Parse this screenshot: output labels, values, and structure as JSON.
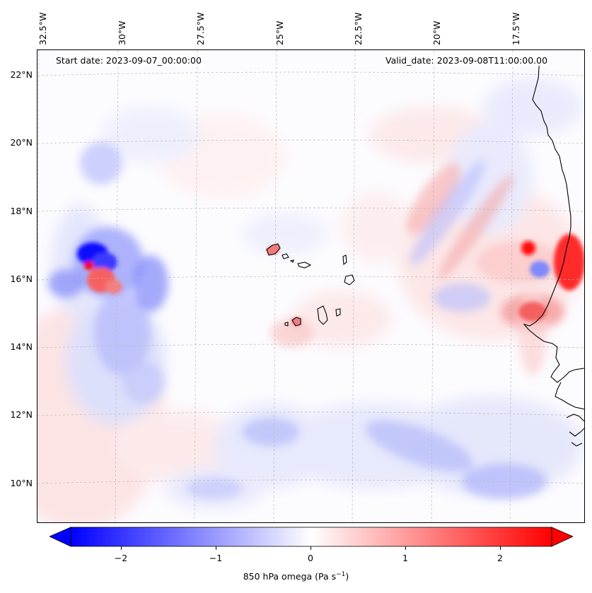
{
  "map": {
    "start_date": "Start date: 2023-09-07_00:00:00",
    "valid_date": "Valid_date: 2023-09-08T11:00:00.00",
    "lon_labels": [
      "32.5°W",
      "30°W",
      "27.5°W",
      "25°W",
      "22.5°W",
      "20°W",
      "17.5°W"
    ],
    "lat_labels": [
      "22°N",
      "20°N",
      "18°N",
      "16°N",
      "14°N",
      "12°N",
      "10°N"
    ],
    "colors": {
      "positive": "#ff0000",
      "negative": "#0000ff",
      "neutral": "#ffffff",
      "coast": "#000000"
    }
  },
  "colorbar": {
    "ticks": [
      "−2",
      "−1",
      "0",
      "1",
      "2"
    ],
    "tick_values": [
      -2,
      -1,
      0,
      1,
      2
    ],
    "range": [
      -2.75,
      2.75
    ],
    "label": "850 hPa omega (Pa s",
    "label_sup": "−1",
    "label_end": ")"
  }
}
